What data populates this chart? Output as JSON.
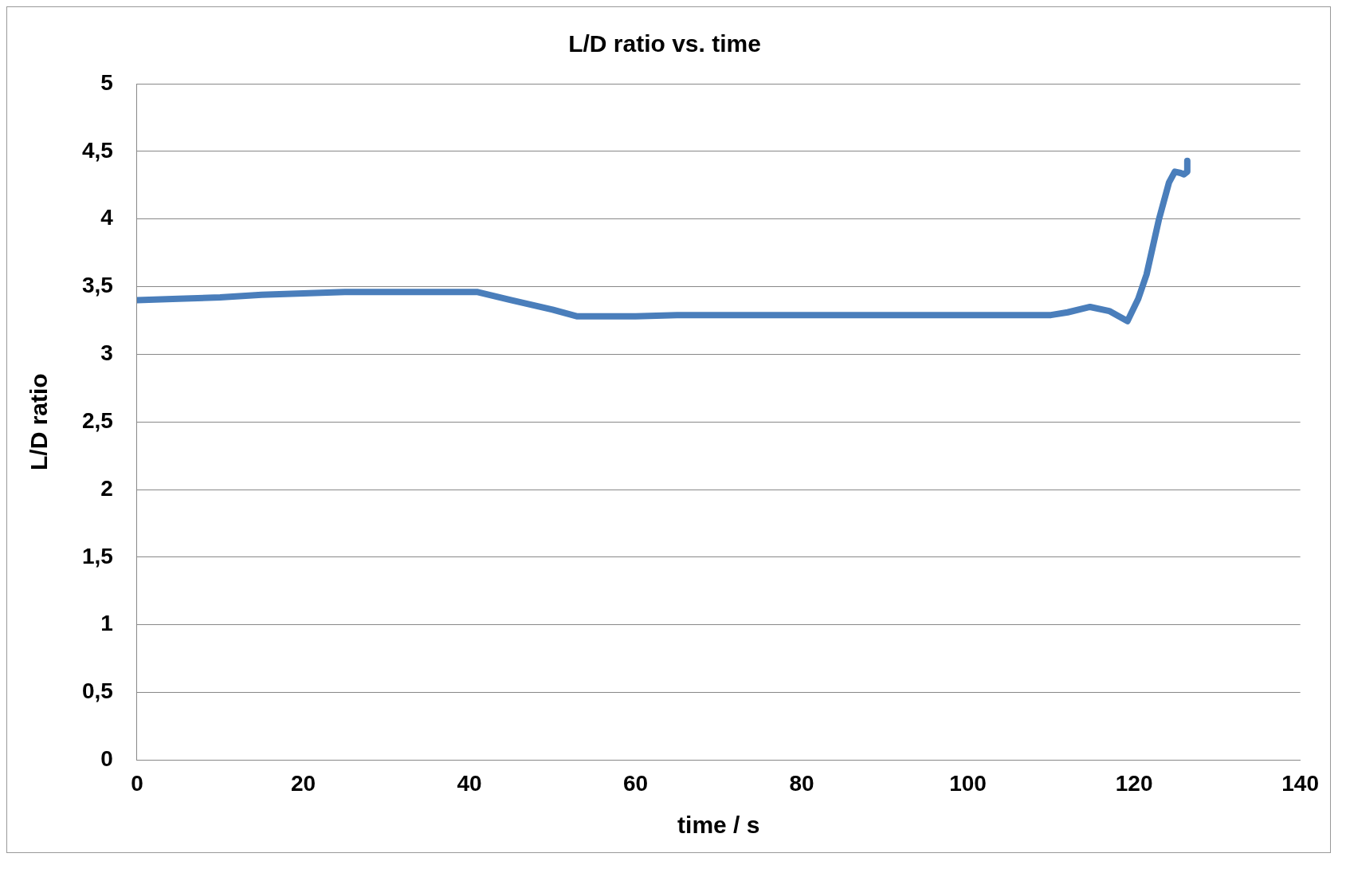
{
  "chart_data": {
    "type": "line",
    "title": "L/D ratio vs. time",
    "xlabel": "time / s",
    "ylabel": "L/D ratio",
    "x": [
      0,
      5,
      10,
      15,
      20,
      25,
      30,
      35,
      40,
      41,
      45,
      50,
      53,
      60,
      65,
      70,
      80,
      90,
      100,
      110,
      112,
      114.7,
      117,
      119.2,
      120.5,
      121.5,
      123,
      124.2,
      124.9,
      125.6,
      126,
      126.4,
      126.4
    ],
    "series": [
      {
        "color": "#4a7ebb",
        "values": [
          3.4,
          3.41,
          3.42,
          3.44,
          3.45,
          3.46,
          3.46,
          3.46,
          3.46,
          3.46,
          3.4,
          3.33,
          3.28,
          3.28,
          3.29,
          3.29,
          3.29,
          3.29,
          3.29,
          3.29,
          3.31,
          3.35,
          3.32,
          3.245,
          3.41,
          3.59,
          4.0,
          4.27,
          4.35,
          4.34,
          4.33,
          4.35,
          4.43
        ]
      }
    ],
    "xlim": [
      0,
      140
    ],
    "xticks": [
      0,
      20,
      40,
      60,
      80,
      100,
      120,
      140
    ],
    "ylim": [
      0,
      5
    ],
    "yticks": [
      {
        "value": 0,
        "label": "0"
      },
      {
        "value": 0.5,
        "label": "0,5"
      },
      {
        "value": 1,
        "label": "1"
      },
      {
        "value": 1.5,
        "label": "1,5"
      },
      {
        "value": 2,
        "label": "2"
      },
      {
        "value": 2.5,
        "label": "2,5"
      },
      {
        "value": 3,
        "label": "3"
      },
      {
        "value": 3.5,
        "label": "3,5"
      },
      {
        "value": 4,
        "label": "4"
      },
      {
        "value": 4.5,
        "label": "4,5"
      },
      {
        "value": 5,
        "label": "5"
      }
    ],
    "grid": "y",
    "legend": false,
    "marker": "none",
    "line_style": "solid"
  }
}
